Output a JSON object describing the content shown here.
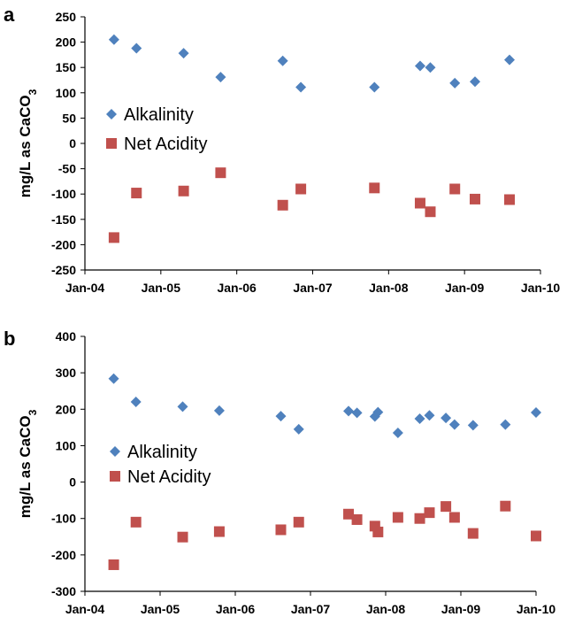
{
  "colors": {
    "alkalinity": "#4F81BD",
    "net_acidity": "#C0504D"
  },
  "panel_labels": [
    "a",
    "b"
  ],
  "ylabel": {
    "main": "mg/L  as CaCO",
    "sub": "3"
  },
  "chart_data": [
    {
      "type": "scatter",
      "title": "",
      "xlabel": "",
      "ylabel": "mg/L  as CaCO3",
      "x_ticks": [
        "Jan-04",
        "Jan-05",
        "Jan-06",
        "Jan-07",
        "Jan-08",
        "Jan-09",
        "Jan-10"
      ],
      "xlim": [
        "2004-01-01",
        "2010-01-01"
      ],
      "ylim": [
        -250,
        250
      ],
      "y_ticks": [
        250,
        200,
        150,
        100,
        50,
        0,
        -50,
        -100,
        -150,
        -200,
        -250
      ],
      "grid": false,
      "legend_position": "center-left",
      "series": [
        {
          "name": "Alkalinity",
          "marker": "diamond",
          "points": [
            [
              "2004-05-20",
              205
            ],
            [
              "2004-09-05",
              188
            ],
            [
              "2005-04-20",
              178
            ],
            [
              "2005-10-15",
              131
            ],
            [
              "2006-08-10",
              163
            ],
            [
              "2006-11-05",
              111
            ],
            [
              "2007-10-25",
              111
            ],
            [
              "2008-06-01",
              153
            ],
            [
              "2008-07-20",
              150
            ],
            [
              "2008-11-15",
              119
            ],
            [
              "2009-02-20",
              122
            ],
            [
              "2009-08-05",
              165
            ]
          ]
        },
        {
          "name": "Net Acidity",
          "marker": "square",
          "points": [
            [
              "2004-05-20",
              -186
            ],
            [
              "2004-09-05",
              -98
            ],
            [
              "2005-04-20",
              -94
            ],
            [
              "2005-10-15",
              -58
            ],
            [
              "2006-08-10",
              -122
            ],
            [
              "2006-11-05",
              -90
            ],
            [
              "2007-10-25",
              -88
            ],
            [
              "2008-06-01",
              -118
            ],
            [
              "2008-07-20",
              -135
            ],
            [
              "2008-11-15",
              -90
            ],
            [
              "2009-02-20",
              -110
            ],
            [
              "2009-08-05",
              -111
            ]
          ]
        }
      ]
    },
    {
      "type": "scatter",
      "title": "",
      "xlabel": "",
      "ylabel": "mg/L  as CaCO3",
      "x_ticks": [
        "Jan-04",
        "Jan-05",
        "Jan-06",
        "Jan-07",
        "Jan-08",
        "Jan-09",
        "Jan-10"
      ],
      "xlim": [
        "2004-01-01",
        "2010-01-01"
      ],
      "ylim": [
        -300,
        400
      ],
      "y_ticks": [
        400,
        300,
        200,
        100,
        0,
        -100,
        -200,
        -300
      ],
      "grid": false,
      "legend_position": "center-left",
      "series": [
        {
          "name": "Alkalinity",
          "marker": "diamond",
          "points": [
            [
              "2004-05-20",
              284
            ],
            [
              "2004-09-05",
              220
            ],
            [
              "2005-04-20",
              207
            ],
            [
              "2005-10-15",
              196
            ],
            [
              "2006-08-10",
              181
            ],
            [
              "2006-11-05",
              145
            ],
            [
              "2007-07-05",
              195
            ],
            [
              "2007-08-15",
              190
            ],
            [
              "2007-11-10",
              180
            ],
            [
              "2007-11-25",
              192
            ],
            [
              "2008-03-01",
              135
            ],
            [
              "2008-06-15",
              174
            ],
            [
              "2008-08-01",
              183
            ],
            [
              "2008-10-20",
              176
            ],
            [
              "2008-12-01",
              158
            ],
            [
              "2009-03-01",
              156
            ],
            [
              "2009-08-05",
              158
            ],
            [
              "2010-01-01",
              191
            ]
          ]
        },
        {
          "name": "Net Acidity",
          "marker": "square",
          "points": [
            [
              "2004-05-20",
              -227
            ],
            [
              "2004-09-05",
              -110
            ],
            [
              "2005-04-20",
              -151
            ],
            [
              "2005-10-15",
              -136
            ],
            [
              "2006-08-10",
              -131
            ],
            [
              "2006-11-05",
              -110
            ],
            [
              "2007-07-05",
              -88
            ],
            [
              "2007-08-15",
              -103
            ],
            [
              "2007-11-10",
              -121
            ],
            [
              "2007-11-25",
              -137
            ],
            [
              "2008-03-01",
              -97
            ],
            [
              "2008-06-15",
              -100
            ],
            [
              "2008-08-01",
              -84
            ],
            [
              "2008-10-20",
              -67
            ],
            [
              "2008-12-01",
              -97
            ],
            [
              "2009-03-01",
              -141
            ],
            [
              "2009-08-05",
              -66
            ],
            [
              "2010-01-01",
              -148
            ]
          ]
        }
      ]
    }
  ]
}
